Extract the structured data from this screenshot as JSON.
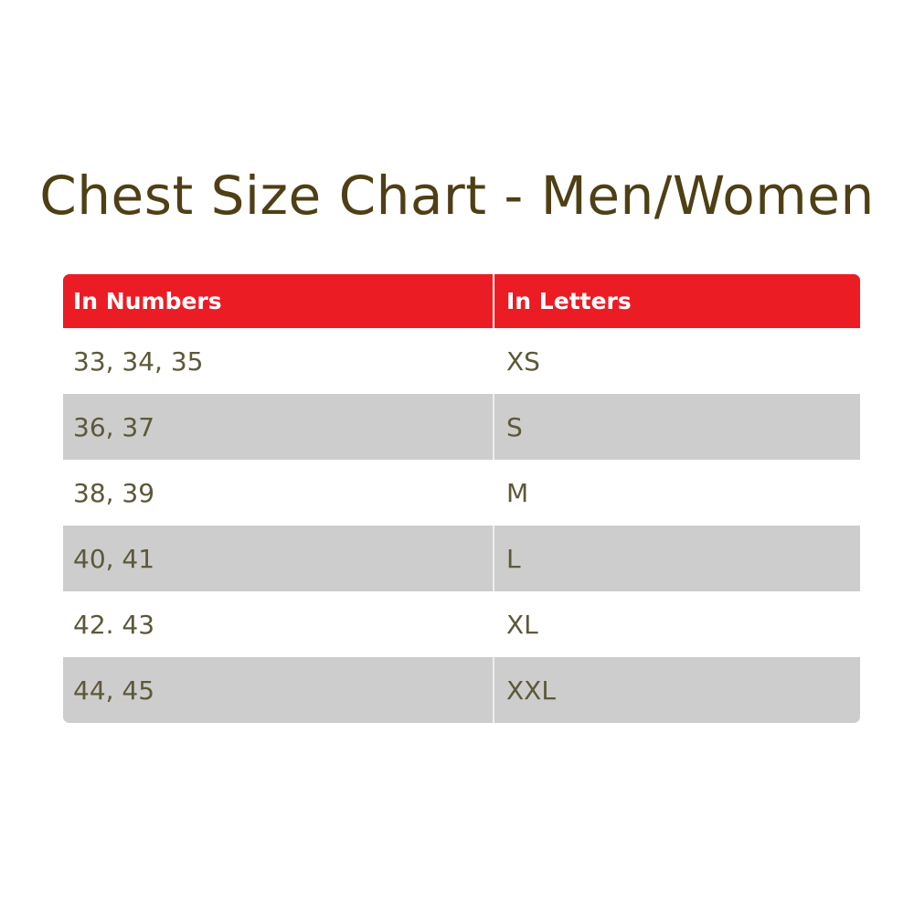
{
  "title": "Chest Size Chart - Men/Women",
  "table": {
    "headers": [
      "In Numbers",
      "In Letters"
    ],
    "rows": [
      [
        "33, 34, 35",
        "XS"
      ],
      [
        "36, 37",
        "S"
      ],
      [
        "38, 39",
        "M"
      ],
      [
        "40, 41",
        "L"
      ],
      [
        "42. 43",
        "XL"
      ],
      [
        "44, 45",
        "XXL"
      ]
    ]
  },
  "colors": {
    "header": "#ec1c24",
    "stripe": "#cdcdcd",
    "title": "#4f3f15",
    "text": "#5d5838"
  }
}
